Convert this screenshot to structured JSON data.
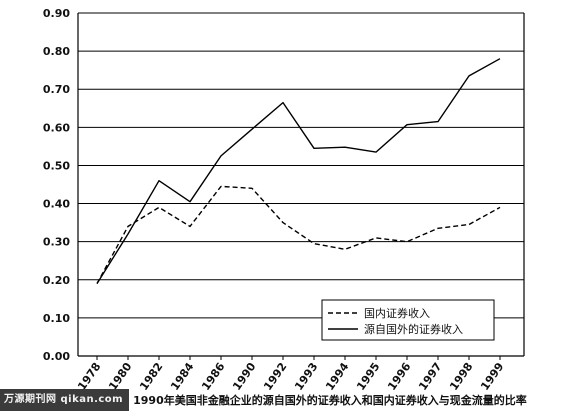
{
  "chart_data": {
    "type": "line",
    "title": "",
    "xlabel": "",
    "ylabel": "",
    "ylim": [
      0,
      0.9
    ],
    "yticks": [
      "0.00",
      "0.10",
      "0.20",
      "0.30",
      "0.40",
      "0.50",
      "0.60",
      "0.70",
      "0.80",
      "0.90"
    ],
    "categories": [
      "1978",
      "1980",
      "1982",
      "1984",
      "1986",
      "1990",
      "1992",
      "1993",
      "1994",
      "1995",
      "1996",
      "1997",
      "1998",
      "1999"
    ],
    "grid": true,
    "legend_position": "bottom-right",
    "series": [
      {
        "name": "国内证券收入",
        "style": "dashed",
        "values": [
          0.19,
          0.34,
          0.39,
          0.34,
          0.445,
          0.44,
          0.35,
          0.295,
          0.28,
          0.31,
          0.3,
          0.335,
          0.345,
          0.39
        ]
      },
      {
        "name": "源自国外的证券收入",
        "style": "solid",
        "values": [
          0.19,
          0.32,
          0.46,
          0.405,
          0.525,
          0.595,
          0.665,
          0.545,
          0.548,
          0.535,
          0.607,
          0.615,
          0.735,
          0.78
        ]
      }
    ]
  },
  "caption": {
    "watermark": "万源期刊网 qikan.com",
    "text": "1990年美国非金融企业的源自国外的证券收入和国内证券收入与现金流量的比率"
  }
}
